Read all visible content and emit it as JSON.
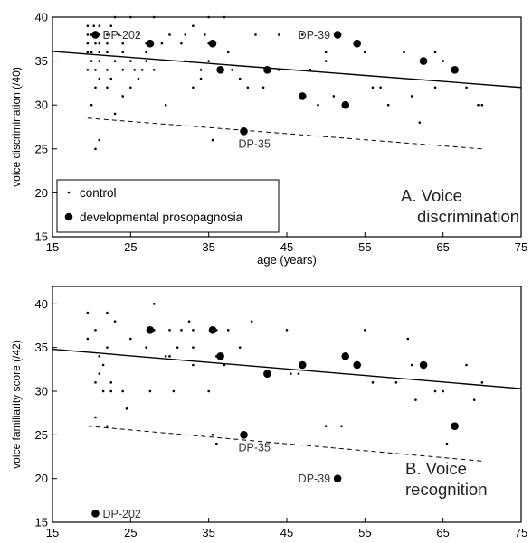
{
  "chart_data": [
    {
      "type": "scatter",
      "xlabel": "age (years)",
      "ylabel": "voice discrimination (/40)",
      "xlim": [
        15,
        75
      ],
      "ylim": [
        15,
        40
      ],
      "xticks": [
        15,
        25,
        35,
        45,
        55,
        65,
        75
      ],
      "yticks": [
        15,
        20,
        25,
        30,
        35,
        40
      ],
      "grid": false,
      "legend_position": "bottom-left",
      "panel_label": "A. Voice\ndiscrimination",
      "legend": [
        {
          "name": "control",
          "marker": "small-dot"
        },
        {
          "name": "developmental prosopagnosia",
          "marker": "large-dot"
        }
      ],
      "series": [
        {
          "name": "control",
          "points": [
            [
              19.5,
              39
            ],
            [
              20.3,
              39
            ],
            [
              21,
              39
            ],
            [
              22.5,
              39
            ],
            [
              23,
              40
            ],
            [
              25,
              40
            ],
            [
              28,
              40
            ],
            [
              33,
              39
            ],
            [
              35,
              40
            ],
            [
              37,
              40
            ],
            [
              19.5,
              38
            ],
            [
              20,
              38
            ],
            [
              21,
              38
            ],
            [
              22,
              38
            ],
            [
              23.5,
              38
            ],
            [
              26,
              38
            ],
            [
              30,
              38
            ],
            [
              32,
              38
            ],
            [
              34.5,
              38
            ],
            [
              41,
              38
            ],
            [
              44,
              38
            ],
            [
              47,
              38
            ],
            [
              19.5,
              37
            ],
            [
              20.5,
              37
            ],
            [
              21,
              37
            ],
            [
              22,
              37
            ],
            [
              24,
              37
            ],
            [
              27,
              37
            ],
            [
              29,
              37
            ],
            [
              31.5,
              37
            ],
            [
              35,
              37
            ],
            [
              19.5,
              36
            ],
            [
              20,
              36
            ],
            [
              21,
              36
            ],
            [
              22,
              36
            ],
            [
              24,
              36
            ],
            [
              27,
              36
            ],
            [
              37.5,
              36
            ],
            [
              50,
              36
            ],
            [
              55,
              36
            ],
            [
              60,
              36
            ],
            [
              64,
              36
            ],
            [
              20,
              35
            ],
            [
              21,
              35
            ],
            [
              23,
              35
            ],
            [
              25,
              35
            ],
            [
              27,
              35
            ],
            [
              32,
              35
            ],
            [
              35,
              35
            ],
            [
              50,
              35
            ],
            [
              65,
              35
            ],
            [
              19.5,
              34
            ],
            [
              20.5,
              34
            ],
            [
              22,
              34
            ],
            [
              24,
              34
            ],
            [
              25.5,
              34
            ],
            [
              26.5,
              34
            ],
            [
              28,
              34
            ],
            [
              34,
              34
            ],
            [
              38,
              34
            ],
            [
              44,
              34
            ],
            [
              48,
              34
            ],
            [
              21,
              33
            ],
            [
              22.5,
              33
            ],
            [
              26,
              33
            ],
            [
              34,
              33
            ],
            [
              39,
              33
            ],
            [
              20.5,
              32
            ],
            [
              22,
              32
            ],
            [
              25,
              32
            ],
            [
              33,
              32
            ],
            [
              40,
              32
            ],
            [
              42,
              32
            ],
            [
              57,
              32
            ],
            [
              64,
              32
            ],
            [
              68,
              32
            ],
            [
              56,
              32
            ],
            [
              24,
              31
            ],
            [
              51,
              31
            ],
            [
              61,
              31
            ],
            [
              20,
              30
            ],
            [
              29.5,
              30
            ],
            [
              49,
              30
            ],
            [
              58,
              30
            ],
            [
              69.5,
              30
            ],
            [
              70,
              30
            ],
            [
              23,
              29
            ],
            [
              62,
              28
            ],
            [
              20.5,
              25
            ],
            [
              21,
              26
            ],
            [
              35.5,
              26
            ]
          ]
        },
        {
          "name": "developmental prosopagnosia",
          "points": [
            [
              20.5,
              38,
              "DP-202"
            ],
            [
              27.5,
              37
            ],
            [
              35.5,
              37
            ],
            [
              36.5,
              34
            ],
            [
              39.5,
              27,
              "DP-35"
            ],
            [
              42.5,
              34
            ],
            [
              47,
              31
            ],
            [
              51.5,
              38,
              "DP-39"
            ],
            [
              52.5,
              30
            ],
            [
              54,
              37
            ],
            [
              62.5,
              35
            ],
            [
              66.5,
              34
            ]
          ]
        }
      ],
      "fit_lines": [
        {
          "style": "solid",
          "x": [
            15,
            75
          ],
          "y": [
            36.1,
            32
          ]
        },
        {
          "style": "dashed",
          "x": [
            19.5,
            70
          ],
          "y": [
            28.5,
            25
          ]
        }
      ]
    },
    {
      "type": "scatter",
      "xlabel": "age (years)",
      "ylabel": "voice familiarity score (/42)",
      "xlim": [
        15,
        75
      ],
      "ylim": [
        15,
        42
      ],
      "xticks": [
        15,
        25,
        35,
        45,
        55,
        65,
        75
      ],
      "yticks": [
        15,
        20,
        25,
        30,
        35,
        40
      ],
      "grid": false,
      "panel_label": "B. Voice\nrecognition",
      "series": [
        {
          "name": "control",
          "points": [
            [
              19.5,
              39
            ],
            [
              22,
              39
            ],
            [
              23,
              38
            ],
            [
              28,
              40
            ],
            [
              32.5,
              38
            ],
            [
              36,
              37
            ],
            [
              37.5,
              37
            ],
            [
              40.5,
              38
            ],
            [
              45,
              37
            ],
            [
              20.5,
              37
            ],
            [
              28,
              37
            ],
            [
              30,
              37
            ],
            [
              31.5,
              37
            ],
            [
              33,
              37
            ],
            [
              55,
              37
            ],
            [
              60.5,
              36
            ],
            [
              19.5,
              36
            ],
            [
              25,
              36
            ],
            [
              27,
              35
            ],
            [
              31,
              35
            ],
            [
              33,
              35
            ],
            [
              39,
              35
            ],
            [
              22,
              35
            ],
            [
              29.5,
              34
            ],
            [
              30,
              34
            ],
            [
              36,
              34
            ],
            [
              21,
              34
            ],
            [
              21.5,
              33
            ],
            [
              33,
              33
            ],
            [
              37,
              33
            ],
            [
              21,
              32
            ],
            [
              20.5,
              31
            ],
            [
              22.5,
              31
            ],
            [
              56,
              31
            ],
            [
              59,
              31
            ],
            [
              21.5,
              30
            ],
            [
              22.5,
              30
            ],
            [
              24,
              30
            ],
            [
              27.5,
              30
            ],
            [
              30.5,
              30
            ],
            [
              35,
              30
            ],
            [
              45.5,
              32
            ],
            [
              46.5,
              32
            ],
            [
              64,
              30
            ],
            [
              65,
              30
            ],
            [
              70,
              31
            ],
            [
              50,
              26
            ],
            [
              52,
              26
            ],
            [
              69,
              29
            ],
            [
              61.5,
              29
            ],
            [
              20.5,
              27
            ],
            [
              24.5,
              28
            ],
            [
              22,
              26
            ],
            [
              35.5,
              25
            ],
            [
              36,
              24
            ],
            [
              65.5,
              24
            ],
            [
              68,
              33
            ],
            [
              61,
              33
            ]
          ]
        },
        {
          "name": "developmental prosopagnosia",
          "points": [
            [
              20.5,
              16,
              "DP-202"
            ],
            [
              27.5,
              37
            ],
            [
              35.5,
              37
            ],
            [
              36.5,
              34
            ],
            [
              39.5,
              25,
              "DP-35"
            ],
            [
              42.5,
              32
            ],
            [
              47,
              33
            ],
            [
              51.5,
              20,
              "DP-39"
            ],
            [
              52.5,
              34
            ],
            [
              54,
              33
            ],
            [
              62.5,
              33
            ],
            [
              66.5,
              26
            ]
          ]
        }
      ],
      "fit_lines": [
        {
          "style": "solid",
          "x": [
            15,
            75
          ],
          "y": [
            34.8,
            30.3
          ]
        },
        {
          "style": "dashed",
          "x": [
            19.5,
            70
          ],
          "y": [
            26,
            22
          ]
        }
      ]
    }
  ]
}
